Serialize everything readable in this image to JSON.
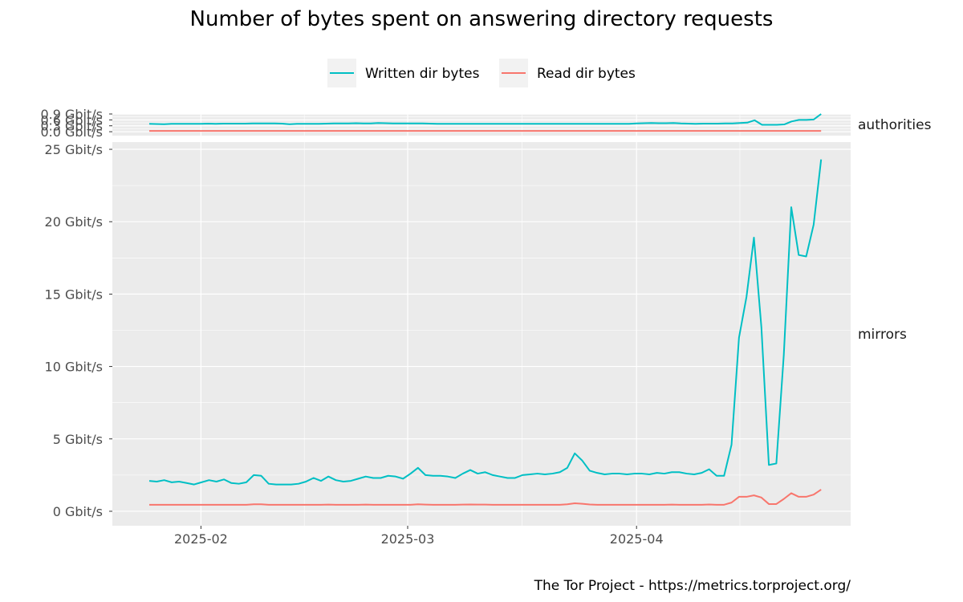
{
  "chart_data": {
    "type": "line",
    "title": "Number of bytes spent on answering directory requests",
    "caption": "The Tor Project - https://metrics.torproject.org/",
    "legend": {
      "position": "top",
      "entries": [
        {
          "name": "Written dir bytes",
          "color": "#00BFC4"
        },
        {
          "name": "Read dir bytes",
          "color": "#F8766D"
        }
      ]
    },
    "x": {
      "start": "2025-01-25",
      "end": "2025-04-26",
      "range": [
        "2025-01-20",
        "2025-04-30"
      ],
      "ticks": [
        {
          "date": "2025-02-01",
          "label": "2025-02"
        },
        {
          "date": "2025-03-01",
          "label": "2025-03"
        },
        {
          "date": "2025-04-01",
          "label": "2025-04"
        }
      ]
    },
    "panels": [
      {
        "name": "authorities",
        "ylim": [
          -0.2,
          0.9
        ],
        "y_ticks": [
          {
            "value": 0.0,
            "label": "0.0 Gbit/s"
          },
          {
            "value": 0.3,
            "label": "0.3 Gbit/s"
          },
          {
            "value": 0.6,
            "label": "0.6 Gbit/s"
          },
          {
            "value": 0.9,
            "label": "0.9 Gbit/s"
          }
        ],
        "series": [
          {
            "name": "Written dir bytes",
            "color": "#00BFC4",
            "values": [
              0.4,
              0.39,
              0.38,
              0.4,
              0.4,
              0.4,
              0.4,
              0.4,
              0.41,
              0.4,
              0.41,
              0.41,
              0.41,
              0.41,
              0.42,
              0.42,
              0.42,
              0.42,
              0.41,
              0.38,
              0.4,
              0.4,
              0.4,
              0.4,
              0.41,
              0.42,
              0.42,
              0.42,
              0.43,
              0.42,
              0.42,
              0.44,
              0.43,
              0.42,
              0.42,
              0.42,
              0.42,
              0.42,
              0.41,
              0.4,
              0.4,
              0.4,
              0.4,
              0.4,
              0.4,
              0.4,
              0.4,
              0.4,
              0.4,
              0.4,
              0.4,
              0.4,
              0.4,
              0.4,
              0.4,
              0.4,
              0.4,
              0.4,
              0.4,
              0.4,
              0.4,
              0.4,
              0.4,
              0.4,
              0.4,
              0.4,
              0.42,
              0.43,
              0.44,
              0.43,
              0.43,
              0.44,
              0.42,
              0.41,
              0.4,
              0.41,
              0.41,
              0.41,
              0.42,
              0.42,
              0.44,
              0.46,
              0.58,
              0.35,
              0.35,
              0.35,
              0.37,
              0.52,
              0.6,
              0.6,
              0.62,
              0.9
            ]
          },
          {
            "name": "Read dir bytes",
            "color": "#F8766D",
            "values": [
              0.04,
              0.04,
              0.04,
              0.04,
              0.04,
              0.04,
              0.04,
              0.04,
              0.04,
              0.04,
              0.04,
              0.04,
              0.04,
              0.04,
              0.04,
              0.04,
              0.04,
              0.04,
              0.04,
              0.04,
              0.04,
              0.04,
              0.04,
              0.04,
              0.04,
              0.04,
              0.04,
              0.04,
              0.04,
              0.04,
              0.04,
              0.04,
              0.04,
              0.04,
              0.04,
              0.04,
              0.04,
              0.04,
              0.04,
              0.04,
              0.04,
              0.04,
              0.04,
              0.04,
              0.04,
              0.04,
              0.04,
              0.04,
              0.04,
              0.04,
              0.04,
              0.04,
              0.04,
              0.04,
              0.04,
              0.04,
              0.04,
              0.04,
              0.04,
              0.04,
              0.04,
              0.04,
              0.04,
              0.04,
              0.04,
              0.04,
              0.04,
              0.04,
              0.04,
              0.04,
              0.04,
              0.04,
              0.04,
              0.04,
              0.04,
              0.04,
              0.04,
              0.04,
              0.04,
              0.04,
              0.04,
              0.04,
              0.04,
              0.04,
              0.04,
              0.04,
              0.04,
              0.04,
              0.04,
              0.04,
              0.04,
              0.04
            ]
          }
        ]
      },
      {
        "name": "mirrors",
        "ylim": [
          -1.0,
          25.5
        ],
        "y_ticks": [
          {
            "value": 0,
            "label": "0 Gbit/s"
          },
          {
            "value": 5,
            "label": "5 Gbit/s"
          },
          {
            "value": 10,
            "label": "10 Gbit/s"
          },
          {
            "value": 15,
            "label": "15 Gbit/s"
          },
          {
            "value": 20,
            "label": "20 Gbit/s"
          },
          {
            "value": 25,
            "label": "25 Gbit/s"
          }
        ],
        "series": [
          {
            "name": "Written dir bytes",
            "color": "#00BFC4",
            "values": [
              2.1,
              2.05,
              2.15,
              2.0,
              2.05,
              1.95,
              1.85,
              2.0,
              2.15,
              2.05,
              2.2,
              1.95,
              1.9,
              2.0,
              2.5,
              2.45,
              1.9,
              1.85,
              1.85,
              1.85,
              1.9,
              2.05,
              2.3,
              2.1,
              2.4,
              2.15,
              2.05,
              2.1,
              2.25,
              2.4,
              2.3,
              2.3,
              2.45,
              2.4,
              2.25,
              2.6,
              3.0,
              2.5,
              2.45,
              2.45,
              2.4,
              2.3,
              2.6,
              2.85,
              2.6,
              2.7,
              2.5,
              2.4,
              2.3,
              2.3,
              2.5,
              2.55,
              2.6,
              2.55,
              2.6,
              2.7,
              3.0,
              4.0,
              3.5,
              2.8,
              2.65,
              2.55,
              2.6,
              2.6,
              2.55,
              2.6,
              2.6,
              2.55,
              2.65,
              2.6,
              2.7,
              2.7,
              2.6,
              2.55,
              2.65,
              2.9,
              2.45,
              2.45,
              4.6,
              12.0,
              14.8,
              18.9,
              12.7,
              3.2,
              3.3,
              10.8,
              21.0,
              17.7,
              17.6,
              19.8,
              24.3
            ]
          },
          {
            "name": "Read dir bytes",
            "color": "#F8766D",
            "values": [
              0.45,
              0.45,
              0.45,
              0.45,
              0.45,
              0.45,
              0.45,
              0.45,
              0.45,
              0.45,
              0.45,
              0.45,
              0.45,
              0.45,
              0.48,
              0.48,
              0.45,
              0.45,
              0.45,
              0.45,
              0.45,
              0.45,
              0.45,
              0.45,
              0.46,
              0.45,
              0.45,
              0.45,
              0.45,
              0.46,
              0.45,
              0.45,
              0.45,
              0.45,
              0.45,
              0.45,
              0.48,
              0.46,
              0.45,
              0.45,
              0.45,
              0.45,
              0.46,
              0.47,
              0.46,
              0.46,
              0.45,
              0.45,
              0.45,
              0.45,
              0.45,
              0.45,
              0.45,
              0.45,
              0.45,
              0.45,
              0.48,
              0.55,
              0.52,
              0.47,
              0.45,
              0.45,
              0.45,
              0.45,
              0.45,
              0.45,
              0.45,
              0.45,
              0.45,
              0.45,
              0.46,
              0.45,
              0.45,
              0.45,
              0.45,
              0.47,
              0.45,
              0.45,
              0.6,
              1.0,
              1.0,
              1.1,
              0.95,
              0.5,
              0.5,
              0.85,
              1.25,
              1.0,
              1.0,
              1.15,
              1.5
            ]
          }
        ]
      }
    ]
  }
}
